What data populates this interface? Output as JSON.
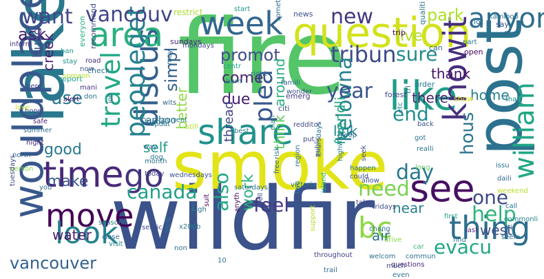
{
  "words": [
    {
      "text": "fire",
      "color": "#54c568"
    },
    {
      "text": "wildfir",
      "color": "#3b528b"
    },
    {
      "text": "smoke",
      "color": "#e2e418"
    },
    {
      "text": "lake",
      "color": "#2a788e"
    },
    {
      "text": "post",
      "color": "#2c728e"
    },
    {
      "text": "question",
      "color": "#d2e21b"
    },
    {
      "text": "wouldplace",
      "color": "#38588c"
    },
    {
      "text": "discus",
      "color": "#34608d"
    },
    {
      "text": "like",
      "color": "#1f9e89"
    },
    {
      "text": "share",
      "color": "#21918c"
    },
    {
      "text": "week",
      "color": "#31668e"
    },
    {
      "text": "knowit",
      "color": "#472f7d"
    },
    {
      "text": "william",
      "color": "#21a685"
    },
    {
      "text": "area",
      "color": "#2ab07f"
    },
    {
      "text": "time",
      "color": "#482878"
    },
    {
      "text": "see",
      "color": "#471063"
    },
    {
      "text": "go",
      "color": "#46337e"
    },
    {
      "text": "move",
      "color": "#440154"
    },
    {
      "text": "thing",
      "color": "#2e6e8e"
    },
    {
      "text": "peopleget",
      "color": "#26828e"
    },
    {
      "text": "travel",
      "color": "#22a884"
    },
    {
      "text": "bc",
      "color": "#8ed645"
    },
    {
      "text": "look",
      "color": "#26828e"
    },
    {
      "text": "anyon",
      "color": "#2e6d8e"
    },
    {
      "text": "vancouv",
      "color": "#414487"
    },
    {
      "text": "want",
      "color": "#3f4889"
    },
    {
      "text": "tribun",
      "color": "#3e4a89"
    },
    {
      "text": "new",
      "color": "#453781"
    },
    {
      "text": "sure",
      "color": "#238a8d"
    },
    {
      "text": "kelowna",
      "color": "#26828e"
    },
    {
      "text": "day",
      "color": "#2a788e"
    },
    {
      "text": "need",
      "color": "#7ad151"
    },
    {
      "text": "one",
      "color": "#3e4989"
    },
    {
      "text": "help",
      "color": "#2fb47c"
    },
    {
      "text": "evacu",
      "color": "#21a685"
    },
    {
      "text": "canada",
      "color": "#1fa088"
    },
    {
      "text": "feel",
      "color": "#443b84"
    },
    {
      "text": "also",
      "color": "#22a884"
    },
    {
      "text": "plea",
      "color": "#38588c"
    },
    {
      "text": "year",
      "color": "#3a548c"
    },
    {
      "text": "end",
      "color": "#228d8d"
    },
    {
      "text": "hous",
      "color": "#2c738e"
    },
    {
      "text": "vancouver",
      "color": "#34618d"
    },
    {
      "text": "park",
      "color": "#ade028"
    },
    {
      "text": "live",
      "color": "#b0dd2f"
    },
    {
      "text": "ask",
      "color": "#482071"
    },
    {
      "text": "use",
      "color": "#2a768e"
    },
    {
      "text": "promot",
      "color": "#3e4c8a"
    },
    {
      "text": "good",
      "color": "#2a788e"
    },
    {
      "text": "make",
      "color": "#39568c"
    },
    {
      "text": "work",
      "color": "#2db27d"
    },
    {
      "text": "simpl",
      "color": "#34608d"
    },
    {
      "text": "water",
      "color": "#481a6c"
    },
    {
      "text": "self",
      "color": "#1e9b8a"
    },
    {
      "text": "come",
      "color": "#482576"
    },
    {
      "text": "due",
      "color": "#481d6f"
    },
    {
      "text": "thank",
      "color": "#471365"
    },
    {
      "text": "there",
      "color": "#482475"
    },
    {
      "text": "link",
      "color": "#25858e"
    },
    {
      "text": "home",
      "color": "#277f8e"
    },
    {
      "text": "around",
      "color": "#2ab07f"
    },
    {
      "text": "thread",
      "color": "#414487"
    },
    {
      "text": "friendli",
      "color": "#25ab82"
    },
    {
      "text": "better",
      "color": "#90d743"
    },
    {
      "text": "think",
      "color": "#5ec962"
    },
    {
      "text": "west",
      "color": "#3c4f8a"
    },
    {
      "text": "air",
      "color": "#2c718e"
    },
    {
      "text": "near",
      "color": "#27808e"
    },
    {
      "text": "cariboo",
      "color": "#2c728e"
    },
    {
      "text": "creek",
      "color": "#482173"
    },
    {
      "text": "build",
      "color": "#3d4e8a"
    },
    {
      "text": "restrict",
      "color": "#a8db34"
    },
    {
      "text": "start",
      "color": "#1f958b"
    },
    {
      "text": "news",
      "color": "#3b528b"
    },
    {
      "text": "lot",
      "color": "#2d708e"
    },
    {
      "text": "trip",
      "color": "#440154"
    },
    {
      "text": "qualiti",
      "color": "#2b758e"
    },
    {
      "text": "say",
      "color": "#3b528b"
    },
    {
      "text": "kamloop",
      "color": "#2e6e8e"
    },
    {
      "text": "inform",
      "color": "#46317e"
    },
    {
      "text": "sundays",
      "color": "#482677"
    },
    {
      "text": "recommend",
      "color": "#404588"
    },
    {
      "text": "mondays",
      "color": "#3e4a89"
    },
    {
      "text": "everyon",
      "color": "#27ad81"
    },
    {
      "text": "someth",
      "color": "#2f6b8e"
    },
    {
      "text": "part",
      "color": "#2b748e"
    },
    {
      "text": "open",
      "color": "#440154"
    },
    {
      "text": "ban",
      "color": "#1f998a"
    },
    {
      "text": "stay",
      "color": "#20928c"
    },
    {
      "text": "road",
      "color": "#472e7c"
    },
    {
      "text": "now",
      "color": "#3d4d8a"
    },
    {
      "text": "can",
      "color": "#306a8e"
    },
    {
      "text": "check",
      "color": "#2d708e"
    },
    {
      "text": "report",
      "color": "#1f9e89"
    },
    {
      "text": "someon",
      "color": "#b5de2b"
    },
    {
      "text": "may",
      "color": "#2f6b8e"
    },
    {
      "text": "centr",
      "color": "#1fa187"
    },
    {
      "text": "right",
      "color": "#2e6f8e"
    },
    {
      "text": "famili",
      "color": "#31668e"
    },
    {
      "text": "emerg",
      "color": "#443983"
    },
    {
      "text": "citi",
      "color": "#3b528b"
    },
    {
      "text": "order",
      "color": "#2a788e"
    },
    {
      "text": "forest",
      "color": "#414487"
    },
    {
      "text": "tri",
      "color": "#2b748e"
    },
    {
      "text": "show",
      "color": "#d5e21a"
    },
    {
      "text": "that",
      "color": "#23898e"
    },
    {
      "text": "etc",
      "color": "#277f8e"
    },
    {
      "text": "mani",
      "color": "#463480"
    },
    {
      "text": "alert",
      "color": "#481b6d"
    },
    {
      "text": "wits",
      "color": "#33638d"
    },
    {
      "text": "burn",
      "color": "#24868e"
    },
    {
      "text": "here",
      "color": "#414487"
    },
    {
      "text": "don",
      "color": "#2c728e"
    },
    {
      "text": "hope",
      "color": "#3d4d8a"
    },
    {
      "text": "safe",
      "color": "#482475"
    },
    {
      "text": "summer",
      "color": "#2d708e"
    },
    {
      "text": "night",
      "color": "#482878"
    },
    {
      "text": "north",
      "color": "#32648e"
    },
    {
      "text": "person",
      "color": "#86d549"
    },
    {
      "text": "tuesdays",
      "color": "#3f4788"
    },
    {
      "text": "job",
      "color": "#306a8e"
    },
    {
      "text": "current",
      "color": "#2b758e"
    },
    {
      "text": "updat",
      "color": "#2a788e"
    },
    {
      "text": "friend",
      "color": "#2c728e"
    },
    {
      "text": "way",
      "color": "#2e6d8e"
    },
    {
      "text": "dog",
      "color": "#2a788e"
    },
    {
      "text": "month",
      "color": "#2d708e"
    },
    {
      "text": "today",
      "color": "#414487"
    },
    {
      "text": "wednesdays",
      "color": "#3b528b"
    },
    {
      "text": "still",
      "color": "#b8de29"
    },
    {
      "text": "best",
      "color": "#2a778e"
    },
    {
      "text": "plan",
      "color": "#27808e"
    },
    {
      "text": "wonder",
      "color": "#3c4f8a"
    },
    {
      "text": "redditor",
      "color": "#3e4989"
    },
    {
      "text": "put",
      "color": "#3f4889"
    },
    {
      "text": "keep",
      "color": "#2e6e8e"
    },
    {
      "text": "back",
      "color": "#3a548c"
    },
    {
      "text": "got",
      "color": "#2c728e"
    },
    {
      "text": "realli",
      "color": "#2b748e"
    },
    {
      "text": "long",
      "color": "#5ec962"
    },
    {
      "text": "issu",
      "color": "#2e6f8e"
    },
    {
      "text": "daili",
      "color": "#30698e"
    },
    {
      "text": "weekend",
      "color": "#b8de29"
    },
    {
      "text": "call",
      "color": "#2c728e"
    },
    {
      "text": "commonli",
      "color": "#26828e"
    },
    {
      "text": "tri",
      "color": "#2d708e"
    },
    {
      "text": "seem",
      "color": "#2f6b8e"
    },
    {
      "text": "find",
      "color": "#2c728e"
    },
    {
      "text": "last",
      "color": "#482878"
    },
    {
      "text": "first",
      "color": "#1fa088"
    },
    {
      "text": "car",
      "color": "#35b779"
    },
    {
      "text": "commun",
      "color": "#2d708e"
    },
    {
      "text": "much",
      "color": "#3a548c"
    },
    {
      "text": "even",
      "color": "#2b748e"
    },
    {
      "text": "welcom",
      "color": "#2e6e8e"
    },
    {
      "text": "questions",
      "color": "#482677"
    },
    {
      "text": "fridays",
      "color": "#3e4c8a"
    },
    {
      "text": "throughout",
      "color": "#443a83"
    },
    {
      "text": "trail",
      "color": "#2f6c8e"
    },
    {
      "text": "take",
      "color": "#414487"
    },
    {
      "text": "chang",
      "color": "#2d708e"
    },
    {
      "text": "drive",
      "color": "#86d549"
    },
    {
      "text": "allow",
      "color": "#3a548c"
    },
    {
      "text": "could",
      "color": "#3e4989"
    },
    {
      "text": "highway",
      "color": "#2a788e"
    },
    {
      "text": "region",
      "color": "#2b748e"
    },
    {
      "text": "public",
      "color": "#3b528b"
    },
    {
      "text": "seek",
      "color": "#3e4a89"
    },
    {
      "text": "victoria",
      "color": "#2b748e"
    },
    {
      "text": "happen",
      "color": "#2c728e"
    },
    {
      "text": "thursdays",
      "color": "#2b758e"
    },
    {
      "text": "risk",
      "color": "#2c728e"
    },
    {
      "text": "two",
      "color": "#2a788e"
    },
    {
      "text": "free",
      "color": "#2f6c8e"
    },
    {
      "text": "saturdays",
      "color": "#2d708e"
    },
    {
      "text": "island",
      "color": "#29af7f"
    },
    {
      "text": "support",
      "color": "#b5de2b"
    },
    {
      "text": "well",
      "color": "#414487"
    },
    {
      "text": "anyth",
      "color": "#440154"
    },
    {
      "text": "we",
      "color": "#2d708e"
    },
    {
      "text": "x200b",
      "color": "#2a788e"
    },
    {
      "text": "high",
      "color": "#2e6e8e"
    },
    {
      "text": "suit",
      "color": "#440154"
    },
    {
      "text": "non",
      "color": "#2c728e"
    },
    {
      "text": "local",
      "color": "#2a788e"
    },
    {
      "text": "servic",
      "color": "#3e4989"
    },
    {
      "text": "visit",
      "color": "#24868e"
    },
    {
      "text": "close",
      "color": "#2f6b8e"
    },
    {
      "text": "season",
      "color": "#2a788e"
    },
    {
      "text": "10",
      "color": "#2e6f8e"
    },
    {
      "text": "you",
      "color": "#2e6e8e"
    },
    {
      "text": "love",
      "color": "#c2df23"
    }
  ]
}
